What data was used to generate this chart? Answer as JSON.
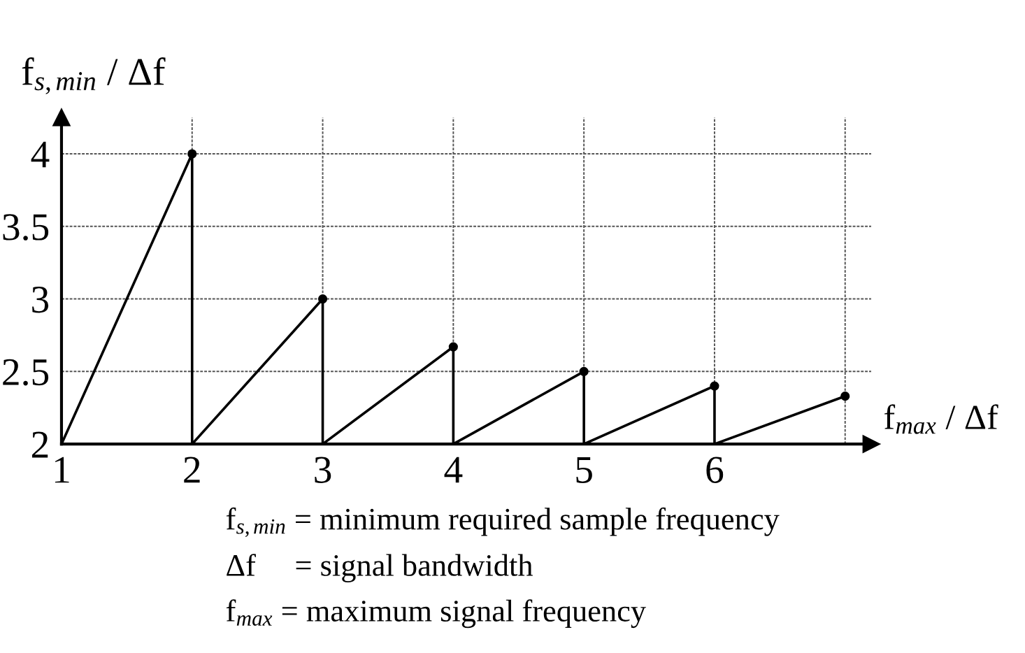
{
  "chart_data": {
    "type": "line",
    "xlabel": "f$_{max}$ / Δf",
    "ylabel": "f$_{s,min}$ / Δf",
    "series": [
      {
        "color": "#000000",
        "x": [
          1,
          2,
          2,
          3,
          3,
          4,
          4,
          5,
          5,
          6,
          6,
          7
        ],
        "values": [
          2,
          4,
          2,
          3,
          2,
          2.67,
          2,
          2.5,
          2,
          2.4,
          2,
          2.33
        ],
        "marker": "none"
      },
      {
        "type": "scatter",
        "color": "#000000",
        "x": [
          2,
          3,
          4,
          5,
          6,
          7
        ],
        "values": [
          4,
          3,
          2.67,
          2.5,
          2.4,
          2.33
        ],
        "marker": "circle"
      }
    ],
    "xlim": [
      1,
      7.2
    ],
    "ylim": [
      2,
      4.25
    ],
    "xticks": [
      1,
      2,
      3,
      4,
      5,
      6,
      {
        "value": 7,
        "label": null
      }
    ],
    "yticks": [
      2,
      2.5,
      3,
      3.5,
      4
    ],
    "grid": true,
    "line_style": "solid",
    "annotations": [
      "f$_{s,min}$ = minimum required sample frequency",
      "Δf     = signal bandwidth",
      "f$_{max}$ = maximum signal frequency"
    ]
  }
}
